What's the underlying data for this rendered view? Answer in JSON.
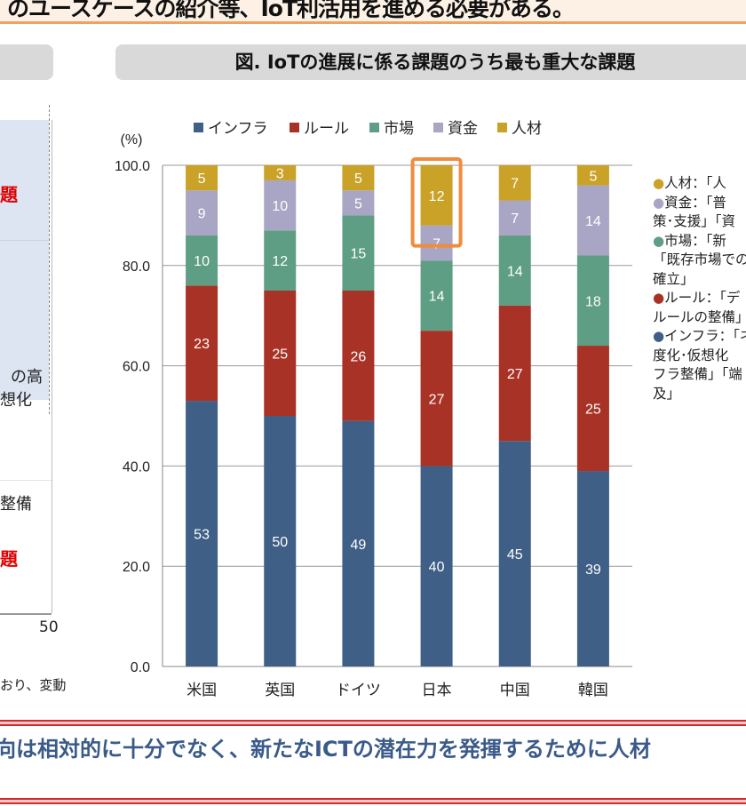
{
  "header": {
    "text": "のユースケースの紹介等、IoT利活用を進める必要がある。"
  },
  "left_panel": {
    "red_label_1": "題",
    "text_1a": "の高",
    "text_1b": "想化",
    "text_2": "整備",
    "red_label_2": "題",
    "axis_tick": "50",
    "footnote": "おり、変動"
  },
  "annotations": [
    {
      "label": "人材：「人",
      "cont": [],
      "color": "#C9A227"
    },
    {
      "label": "資金：「普",
      "cont": [
        "策･支援」「資"
      ],
      "color": "#A9A5C4"
    },
    {
      "label": "市場：「新",
      "cont": [
        "「既存市場での",
        "確立」"
      ],
      "color": "#5E9E84"
    },
    {
      "label": "ルール：「デ",
      "cont": [
        "ルールの整備」"
      ],
      "color": "#A93226"
    },
    {
      "label": "インフラ：「ネ",
      "cont": [
        "度化･仮想化",
        "フラ整備」「端",
        "及」"
      ],
      "color": "#3F5F86"
    }
  ],
  "footer": {
    "text": "向は相対的に十分でなく、新たなICTの潜在力を発揮するために人材"
  },
  "chart_data": {
    "type": "bar",
    "stacked": true,
    "title": "図. IoTの進展に係る課題のうち最も重大な課題",
    "ylabel": "(%)",
    "ylim": [
      0,
      100
    ],
    "yticks": [
      "0.0",
      "20.0",
      "40.0",
      "60.0",
      "80.0",
      "100.0"
    ],
    "grid": true,
    "legend_position": "top",
    "categories": [
      "米国",
      "英国",
      "ドイツ",
      "日本",
      "中国",
      "韓国"
    ],
    "series": [
      {
        "name": "インフラ",
        "color": "#3F5F86",
        "values": [
          53,
          50,
          49,
          40,
          45,
          39
        ]
      },
      {
        "name": "ルール",
        "color": "#A93226",
        "values": [
          23,
          25,
          26,
          27,
          27,
          25
        ]
      },
      {
        "name": "市場",
        "color": "#5E9E84",
        "values": [
          10,
          12,
          15,
          14,
          14,
          18
        ]
      },
      {
        "name": "資金",
        "color": "#A9A5C4",
        "values": [
          9,
          10,
          5,
          7,
          7,
          14
        ]
      },
      {
        "name": "人材",
        "color": "#C9A227",
        "values": [
          5,
          3,
          5,
          12,
          7,
          5
        ]
      }
    ],
    "highlight": {
      "category": "日本",
      "series": "人材",
      "color": "#F08C3C"
    }
  }
}
